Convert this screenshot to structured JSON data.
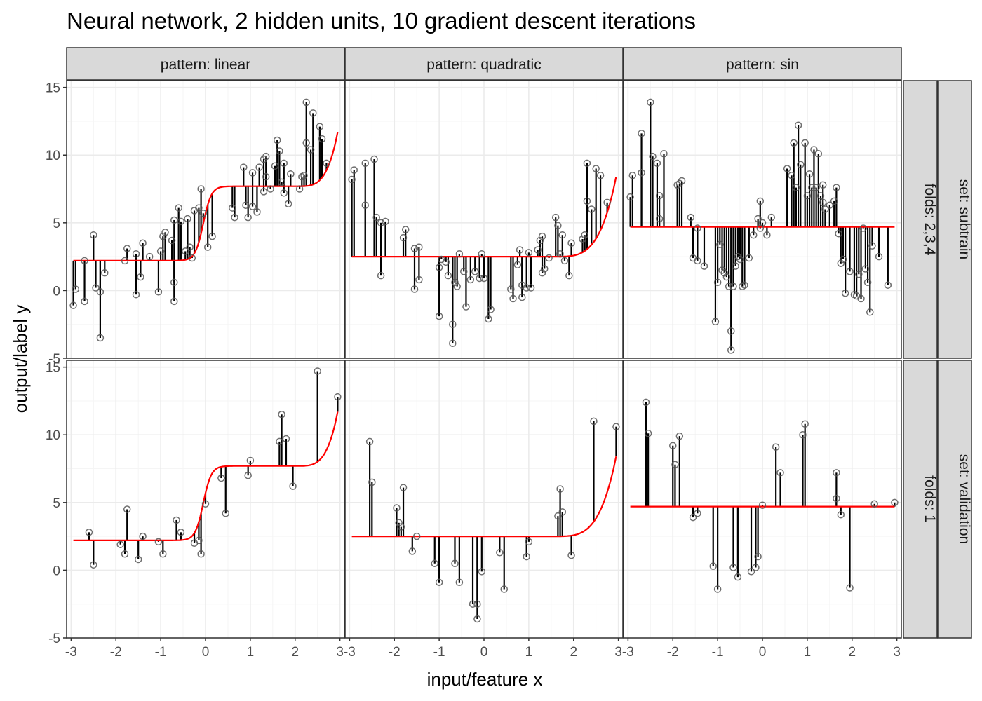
{
  "title": "Neural network, 2 hidden units, 10 gradient descent iterations",
  "chart_data": {
    "type": "scatter",
    "xlabel": "input/feature x",
    "ylabel": "output/label y",
    "xlim": [
      -3.1,
      3.1
    ],
    "ylim": [
      -5,
      15.5
    ],
    "x_ticks": [
      -3,
      -2,
      -1,
      0,
      1,
      2,
      3
    ],
    "y_ticks": [
      -5,
      0,
      5,
      10,
      15
    ],
    "grid": true,
    "colors": {
      "prediction_line": "#ff0000",
      "residual": "#000000",
      "point_stroke": "#555555",
      "strip_bg": "#d9d9d9",
      "grid_major": "#ebebeb",
      "grid_minor": "#f5f5f5"
    },
    "col_strips": [
      "pattern: linear",
      "pattern: quadratic",
      "pattern: sin"
    ],
    "row_strips": [
      {
        "set": "set: subtrain",
        "folds": "folds: 2,3,4"
      },
      {
        "set": "set: validation",
        "folds": "folds: 1"
      }
    ],
    "panels": [
      {
        "pattern": "linear",
        "set": "subtrain",
        "prediction": {
          "low": 2.2,
          "mid": 7.7,
          "center": -0.05,
          "scale": 0.09,
          "tail_start": 2.0,
          "tail_end": 2.95,
          "tail_top": 11.7
        },
        "points": [
          [
            -2.95,
            -1.1
          ],
          [
            -2.9,
            0.1
          ],
          [
            -2.7,
            -0.8
          ],
          [
            -2.7,
            2.2
          ],
          [
            -2.5,
            4.1
          ],
          [
            -2.45,
            0.2
          ],
          [
            -2.35,
            -0.1
          ],
          [
            -2.35,
            -3.5
          ],
          [
            -2.25,
            1.3
          ],
          [
            -1.8,
            2.2
          ],
          [
            -1.75,
            3.1
          ],
          [
            -1.55,
            2.7
          ],
          [
            -1.55,
            -0.3
          ],
          [
            -1.45,
            1.0
          ],
          [
            -1.4,
            3.5
          ],
          [
            -1.25,
            2.5
          ],
          [
            -1.05,
            -0.1
          ],
          [
            -1.0,
            2.9
          ],
          [
            -0.95,
            4.0
          ],
          [
            -0.9,
            4.3
          ],
          [
            -0.75,
            3.7
          ],
          [
            -0.7,
            5.2
          ],
          [
            -0.7,
            0.6
          ],
          [
            -0.7,
            -0.8
          ],
          [
            -0.6,
            6.1
          ],
          [
            -0.55,
            5.1
          ],
          [
            -0.45,
            2.9
          ],
          [
            -0.4,
            5.3
          ],
          [
            -0.35,
            3.2
          ],
          [
            -0.3,
            2.4
          ],
          [
            -0.25,
            5.9
          ],
          [
            -0.15,
            6.1
          ],
          [
            -0.1,
            7.5
          ],
          [
            -0.05,
            5.7
          ],
          [
            0.05,
            3.2
          ],
          [
            0.15,
            4.0
          ],
          [
            0.6,
            6.1
          ],
          [
            0.65,
            5.4
          ],
          [
            0.85,
            9.1
          ],
          [
            0.9,
            6.3
          ],
          [
            0.95,
            5.4
          ],
          [
            1.05,
            8.7
          ],
          [
            1.05,
            6.2
          ],
          [
            1.15,
            5.8
          ],
          [
            1.2,
            9.1
          ],
          [
            1.3,
            7.3
          ],
          [
            1.3,
            9.7
          ],
          [
            1.35,
            9.9
          ],
          [
            1.35,
            8.4
          ],
          [
            1.45,
            7.5
          ],
          [
            1.55,
            9.2
          ],
          [
            1.6,
            11.1
          ],
          [
            1.65,
            10.3
          ],
          [
            1.7,
            8.0
          ],
          [
            1.75,
            7.2
          ],
          [
            1.75,
            9.4
          ],
          [
            1.85,
            6.4
          ],
          [
            1.9,
            8.6
          ],
          [
            2.1,
            7.5
          ],
          [
            2.15,
            8.4
          ],
          [
            2.2,
            8.5
          ],
          [
            2.25,
            13.9
          ],
          [
            2.25,
            10.9
          ],
          [
            2.35,
            10.4
          ],
          [
            2.4,
            13.1
          ],
          [
            2.55,
            12.1
          ],
          [
            2.6,
            11.2
          ],
          [
            2.7,
            9.4
          ]
        ]
      },
      {
        "pattern": "quadratic",
        "set": "subtrain",
        "prediction": {
          "low": 2.5,
          "mid": 2.5,
          "center": 0.0,
          "scale": 0.1,
          "tail_start": 1.5,
          "tail_end": 2.95,
          "tail_top": 8.4
        },
        "points": [
          [
            -2.95,
            8.2
          ],
          [
            -2.9,
            8.9
          ],
          [
            -2.65,
            6.3
          ],
          [
            -2.65,
            9.4
          ],
          [
            -2.45,
            9.7
          ],
          [
            -2.4,
            5.4
          ],
          [
            -2.3,
            5.0
          ],
          [
            -2.3,
            1.1
          ],
          [
            -2.2,
            5.1
          ],
          [
            -1.8,
            3.9
          ],
          [
            -1.75,
            4.5
          ],
          [
            -1.55,
            0.1
          ],
          [
            -1.55,
            3.1
          ],
          [
            -1.45,
            0.8
          ],
          [
            -1.45,
            3.2
          ],
          [
            -1.0,
            -1.9
          ],
          [
            -1.0,
            1.7
          ],
          [
            -0.95,
            2.3
          ],
          [
            -0.85,
            2.1
          ],
          [
            -0.8,
            1.1
          ],
          [
            -0.7,
            -2.5
          ],
          [
            -0.7,
            -3.9
          ],
          [
            -0.65,
            0.6
          ],
          [
            -0.6,
            0.3
          ],
          [
            -0.55,
            2.7
          ],
          [
            -0.45,
            1.4
          ],
          [
            -0.4,
            -1.2
          ],
          [
            -0.3,
            0.8
          ],
          [
            -0.2,
            1.4
          ],
          [
            -0.1,
            0.9
          ],
          [
            -0.05,
            2.7
          ],
          [
            0.0,
            0.9
          ],
          [
            0.1,
            -2.1
          ],
          [
            0.15,
            -1.4
          ],
          [
            0.6,
            0.1
          ],
          [
            0.65,
            -0.6
          ],
          [
            0.75,
            1.9
          ],
          [
            0.8,
            3.0
          ],
          [
            0.85,
            0.4
          ],
          [
            0.85,
            -0.5
          ],
          [
            0.95,
            0.2
          ],
          [
            1.0,
            2.8
          ],
          [
            1.05,
            0.2
          ],
          [
            1.2,
            3.0
          ],
          [
            1.25,
            3.7
          ],
          [
            1.3,
            1.3
          ],
          [
            1.3,
            4.0
          ],
          [
            1.35,
            1.6
          ],
          [
            1.45,
            2.4
          ],
          [
            1.6,
            5.4
          ],
          [
            1.65,
            4.8
          ],
          [
            1.7,
            2.7
          ],
          [
            1.75,
            4.1
          ],
          [
            1.8,
            2.2
          ],
          [
            1.9,
            1.1
          ],
          [
            1.95,
            3.5
          ],
          [
            2.2,
            3.8
          ],
          [
            2.25,
            4.1
          ],
          [
            2.3,
            9.4
          ],
          [
            2.3,
            6.6
          ],
          [
            2.4,
            6.0
          ],
          [
            2.5,
            9.0
          ],
          [
            2.6,
            8.5
          ],
          [
            2.75,
            6.5
          ]
        ]
      },
      {
        "pattern": "sin",
        "set": "subtrain",
        "prediction": {
          "low": 4.7,
          "mid": 4.7,
          "center": 0.0,
          "scale": 0.1,
          "tail_start": 3.0,
          "tail_end": 3.0,
          "tail_top": 4.7
        },
        "points": [
          [
            -2.95,
            6.9
          ],
          [
            -2.9,
            8.5
          ],
          [
            -2.7,
            11.6
          ],
          [
            -2.7,
            8.7
          ],
          [
            -2.5,
            13.9
          ],
          [
            -2.45,
            9.9
          ],
          [
            -2.35,
            9.4
          ],
          [
            -2.3,
            7.0
          ],
          [
            -2.3,
            5.3
          ],
          [
            -2.2,
            10.1
          ],
          [
            -1.9,
            7.8
          ],
          [
            -1.85,
            7.9
          ],
          [
            -1.8,
            8.1
          ],
          [
            -1.6,
            5.4
          ],
          [
            -1.55,
            2.4
          ],
          [
            -1.45,
            4.6
          ],
          [
            -1.45,
            2.2
          ],
          [
            -1.3,
            1.8
          ],
          [
            -1.05,
            -2.3
          ],
          [
            -1.0,
            0.6
          ],
          [
            -0.95,
            3.4
          ],
          [
            -0.9,
            1.5
          ],
          [
            -0.85,
            1.3
          ],
          [
            -0.8,
            1.0
          ],
          [
            -0.75,
            0.3
          ],
          [
            -0.7,
            -3.0
          ],
          [
            -0.7,
            -4.4
          ],
          [
            -0.65,
            0.3
          ],
          [
            -0.6,
            1.8
          ],
          [
            -0.55,
            2.5
          ],
          [
            -0.5,
            2.3
          ],
          [
            -0.45,
            0.3
          ],
          [
            -0.4,
            0.4
          ],
          [
            -0.3,
            2.4
          ],
          [
            -0.2,
            4.1
          ],
          [
            -0.1,
            5.3
          ],
          [
            -0.05,
            6.6
          ],
          [
            -0.05,
            4.6
          ],
          [
            0.0,
            5.0
          ],
          [
            0.1,
            4.1
          ],
          [
            0.2,
            5.4
          ],
          [
            0.55,
            9.0
          ],
          [
            0.65,
            8.5
          ],
          [
            0.7,
            10.9
          ],
          [
            0.75,
            7.6
          ],
          [
            0.8,
            12.2
          ],
          [
            0.85,
            9.3
          ],
          [
            0.95,
            10.9
          ],
          [
            1.0,
            7.0
          ],
          [
            1.05,
            8.6
          ],
          [
            1.1,
            7.6
          ],
          [
            1.15,
            10.4
          ],
          [
            1.2,
            7.6
          ],
          [
            1.25,
            10.1
          ],
          [
            1.3,
            7.0
          ],
          [
            1.35,
            7.8
          ],
          [
            1.35,
            6.5
          ],
          [
            1.4,
            6.0
          ],
          [
            1.5,
            6.3
          ],
          [
            1.6,
            6.6
          ],
          [
            1.65,
            7.6
          ],
          [
            1.7,
            4.2
          ],
          [
            1.75,
            2.0
          ],
          [
            1.8,
            2.3
          ],
          [
            1.85,
            -0.2
          ],
          [
            1.95,
            1.4
          ],
          [
            2.05,
            -0.3
          ],
          [
            2.1,
            -0.4
          ],
          [
            2.15,
            1.2
          ],
          [
            2.2,
            -0.6
          ],
          [
            2.25,
            4.6
          ],
          [
            2.3,
            1.6
          ],
          [
            2.35,
            0.6
          ],
          [
            2.4,
            -1.6
          ],
          [
            2.45,
            3.3
          ],
          [
            2.6,
            2.5
          ],
          [
            2.8,
            0.4
          ]
        ]
      },
      {
        "pattern": "linear",
        "set": "validation",
        "prediction": {
          "low": 2.2,
          "mid": 7.7,
          "center": -0.05,
          "scale": 0.09,
          "tail_start": 2.0,
          "tail_end": 2.95,
          "tail_top": 11.7
        },
        "points": [
          [
            -2.6,
            2.8
          ],
          [
            -2.5,
            0.4
          ],
          [
            -1.9,
            1.9
          ],
          [
            -1.8,
            1.2
          ],
          [
            -1.75,
            4.5
          ],
          [
            -1.5,
            0.8
          ],
          [
            -1.4,
            2.5
          ],
          [
            -1.05,
            2.1
          ],
          [
            -0.95,
            1.2
          ],
          [
            -0.65,
            3.7
          ],
          [
            -0.55,
            2.8
          ],
          [
            -0.25,
            2.0
          ],
          [
            -0.15,
            2.2
          ],
          [
            -0.1,
            1.2
          ],
          [
            0.0,
            4.9
          ],
          [
            0.35,
            6.8
          ],
          [
            0.45,
            4.2
          ],
          [
            0.95,
            7.0
          ],
          [
            1.0,
            8.1
          ],
          [
            1.65,
            9.5
          ],
          [
            1.7,
            11.5
          ],
          [
            1.8,
            9.7
          ],
          [
            1.95,
            6.2
          ],
          [
            2.5,
            14.7
          ],
          [
            2.95,
            12.8
          ]
        ]
      },
      {
        "pattern": "quadratic",
        "set": "validation",
        "prediction": {
          "low": 2.5,
          "mid": 2.5,
          "center": 0.0,
          "scale": 0.1,
          "tail_start": 1.5,
          "tail_end": 2.95,
          "tail_top": 8.4
        },
        "points": [
          [
            -2.55,
            9.5
          ],
          [
            -2.5,
            6.5
          ],
          [
            -1.95,
            4.6
          ],
          [
            -1.9,
            3.5
          ],
          [
            -1.85,
            3.2
          ],
          [
            -1.8,
            6.1
          ],
          [
            -1.6,
            1.4
          ],
          [
            -1.5,
            2.5
          ],
          [
            -1.1,
            0.5
          ],
          [
            -1.0,
            -0.9
          ],
          [
            -0.65,
            0.5
          ],
          [
            -0.55,
            -0.9
          ],
          [
            -0.25,
            -2.5
          ],
          [
            -0.15,
            -2.5
          ],
          [
            -0.15,
            -3.6
          ],
          [
            -0.05,
            -0.1
          ],
          [
            0.35,
            1.3
          ],
          [
            0.45,
            -1.4
          ],
          [
            0.95,
            1.0
          ],
          [
            1.0,
            2.1
          ],
          [
            1.65,
            4.0
          ],
          [
            1.7,
            6.0
          ],
          [
            1.75,
            4.3
          ],
          [
            1.95,
            1.1
          ],
          [
            2.45,
            11.0
          ],
          [
            2.95,
            10.6
          ]
        ]
      },
      {
        "pattern": "sin",
        "set": "validation",
        "prediction": {
          "low": 4.7,
          "mid": 4.7,
          "center": 0.0,
          "scale": 0.1,
          "tail_start": 3.0,
          "tail_end": 3.0,
          "tail_top": 4.7
        },
        "points": [
          [
            -2.6,
            12.4
          ],
          [
            -2.55,
            10.1
          ],
          [
            -2.0,
            9.2
          ],
          [
            -1.95,
            7.8
          ],
          [
            -1.85,
            9.9
          ],
          [
            -1.55,
            3.9
          ],
          [
            -1.45,
            4.2
          ],
          [
            -1.1,
            0.3
          ],
          [
            -1.0,
            -1.4
          ],
          [
            -0.65,
            0.2
          ],
          [
            -0.55,
            -0.5
          ],
          [
            -0.25,
            -0.1
          ],
          [
            -0.15,
            0.2
          ],
          [
            -0.1,
            1.0
          ],
          [
            0.0,
            4.8
          ],
          [
            0.3,
            9.1
          ],
          [
            0.4,
            7.2
          ],
          [
            0.9,
            10.0
          ],
          [
            0.95,
            10.8
          ],
          [
            1.65,
            7.2
          ],
          [
            1.65,
            5.3
          ],
          [
            1.75,
            4.1
          ],
          [
            1.95,
            -1.3
          ],
          [
            2.5,
            4.9
          ],
          [
            2.95,
            5.0
          ]
        ]
      }
    ]
  }
}
